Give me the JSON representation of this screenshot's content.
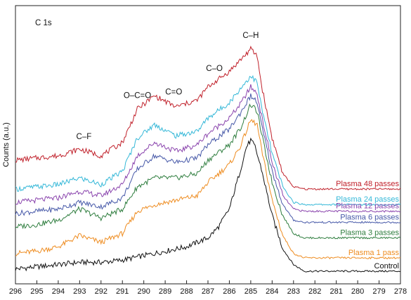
{
  "chart_data": {
    "type": "line",
    "panel_label": "C 1s",
    "ylabel": "Counts (a.u.)",
    "xlabel": "",
    "xlim": [
      296,
      278
    ],
    "x_ticks": [
      296,
      295,
      294,
      293,
      292,
      291,
      290,
      289,
      288,
      287,
      286,
      285,
      284,
      283,
      282,
      281,
      280,
      279,
      278
    ],
    "x_reversed": true,
    "y_ticks_shown": false,
    "grid": false,
    "legend": "inline labels at right end of each curve",
    "peak_annotations": [
      {
        "text": "C–F",
        "x": 292.8
      },
      {
        "text": "O–C=O",
        "x": 290.3
      },
      {
        "text": "C=O",
        "x": 288.6
      },
      {
        "text": "C–O",
        "x": 286.7
      },
      {
        "text": "C–H",
        "x": 285.0
      }
    ],
    "series": [
      {
        "name": "Control",
        "color": "#111111",
        "x": [
          296,
          295,
          294,
          293,
          292,
          291,
          290,
          289,
          288,
          287,
          286.5,
          286,
          285.5,
          285.2,
          285,
          284.8,
          284.5,
          284,
          283.5,
          283,
          282.5,
          282,
          281,
          280,
          279,
          278
        ],
        "y": [
          0.01,
          0.02,
          0.03,
          0.04,
          0.04,
          0.05,
          0.07,
          0.09,
          0.11,
          0.15,
          0.2,
          0.28,
          0.45,
          0.56,
          0.59,
          0.56,
          0.46,
          0.25,
          0.1,
          0.03,
          0.0,
          0.0,
          0.0,
          0.0,
          0.0,
          0.0
        ]
      },
      {
        "name": "Plasma 1 pass",
        "color": "#ee8c20",
        "x": [
          296,
          295,
          294,
          293,
          292,
          291,
          290.3,
          289.5,
          288.5,
          287.5,
          287,
          286,
          285.5,
          285,
          284.7,
          284.5,
          284,
          283.5,
          283,
          282.5,
          282,
          281,
          280,
          279,
          278
        ],
        "y": [
          0.08,
          0.09,
          0.11,
          0.16,
          0.13,
          0.17,
          0.27,
          0.3,
          0.32,
          0.34,
          0.4,
          0.48,
          0.56,
          0.68,
          0.66,
          0.55,
          0.32,
          0.16,
          0.08,
          0.06,
          0.06,
          0.06,
          0.06,
          0.06,
          0.06
        ]
      },
      {
        "name": "Plasma 3 passes",
        "color": "#2e7d3e",
        "x": [
          296,
          295,
          294,
          293,
          292,
          291,
          290.3,
          289.5,
          288.5,
          287.5,
          287,
          286,
          285.5,
          285,
          284.7,
          284.5,
          284,
          283.5,
          283,
          282.5,
          282,
          281,
          280,
          279,
          278
        ],
        "y": [
          0.2,
          0.21,
          0.23,
          0.28,
          0.24,
          0.28,
          0.38,
          0.42,
          0.42,
          0.44,
          0.5,
          0.57,
          0.64,
          0.75,
          0.72,
          0.62,
          0.4,
          0.25,
          0.17,
          0.15,
          0.15,
          0.15,
          0.15,
          0.15,
          0.15
        ]
      },
      {
        "name": "Plasma 6 passes",
        "color": "#4658a8",
        "x": [
          296,
          295,
          294,
          293,
          292,
          291,
          290.3,
          289.5,
          288.5,
          287.5,
          287,
          286,
          285.5,
          285,
          284.7,
          284.5,
          284,
          283.5,
          283,
          282.5,
          282,
          281,
          280,
          279,
          278
        ],
        "y": [
          0.26,
          0.27,
          0.28,
          0.31,
          0.29,
          0.33,
          0.46,
          0.52,
          0.49,
          0.51,
          0.57,
          0.64,
          0.71,
          0.79,
          0.76,
          0.66,
          0.45,
          0.3,
          0.23,
          0.22,
          0.22,
          0.22,
          0.22,
          0.22,
          0.22
        ]
      },
      {
        "name": "Plasma 12 passes",
        "color": "#8a44ad",
        "x": [
          296,
          295,
          294,
          293,
          292,
          291,
          290.3,
          289.5,
          288.5,
          287.5,
          287,
          286,
          285.5,
          285,
          284.7,
          284.5,
          284,
          283.5,
          283,
          282.5,
          282,
          281,
          280,
          279,
          278
        ],
        "y": [
          0.31,
          0.32,
          0.33,
          0.36,
          0.34,
          0.39,
          0.52,
          0.58,
          0.54,
          0.57,
          0.62,
          0.69,
          0.75,
          0.83,
          0.8,
          0.7,
          0.49,
          0.34,
          0.28,
          0.27,
          0.27,
          0.27,
          0.27,
          0.27,
          0.27
        ]
      },
      {
        "name": "Plasma 24 passes",
        "color": "#35b8d8",
        "x": [
          296,
          295,
          294,
          293,
          292,
          291,
          290.3,
          289.5,
          288.5,
          287.5,
          287,
          286,
          285.5,
          285,
          284.7,
          284.5,
          284,
          283.5,
          283,
          282.5,
          282,
          281,
          280,
          279,
          278
        ],
        "y": [
          0.37,
          0.38,
          0.39,
          0.42,
          0.39,
          0.45,
          0.6,
          0.66,
          0.61,
          0.63,
          0.69,
          0.76,
          0.82,
          0.88,
          0.85,
          0.74,
          0.53,
          0.38,
          0.31,
          0.3,
          0.3,
          0.3,
          0.3,
          0.3,
          0.3
        ]
      },
      {
        "name": "Plasma 48 passes",
        "color": "#c0202a",
        "x": [
          296,
          295,
          294,
          293,
          292,
          291,
          290.3,
          289.5,
          288.5,
          287.5,
          287,
          286,
          285.5,
          285,
          284.7,
          284.5,
          284,
          283.5,
          283,
          282.5,
          282,
          281,
          280,
          279,
          278
        ],
        "y": [
          0.5,
          0.51,
          0.52,
          0.55,
          0.52,
          0.58,
          0.73,
          0.79,
          0.74,
          0.77,
          0.83,
          0.9,
          0.95,
          1.0,
          0.97,
          0.84,
          0.6,
          0.44,
          0.38,
          0.37,
          0.37,
          0.37,
          0.37,
          0.37,
          0.37
        ]
      }
    ]
  }
}
